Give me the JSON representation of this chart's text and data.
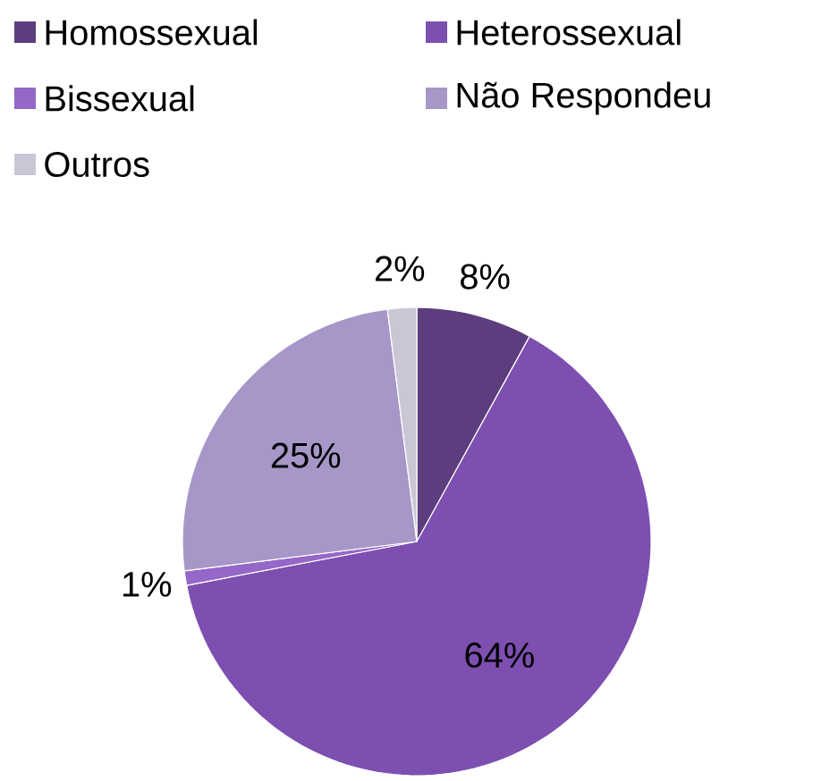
{
  "chart_data": {
    "type": "pie",
    "categories": [
      "Homossexual",
      "Heterossexual",
      "Bissexual",
      "Não Respondeu",
      "Outros"
    ],
    "values": [
      8,
      64,
      1,
      25,
      2
    ],
    "value_labels": [
      "8%",
      "64%",
      "1%",
      "25%",
      "2%"
    ],
    "colors": [
      "#5c3d7d",
      "#7c4fb0",
      "#9467c8",
      "#a797c8",
      "#cbc6d6"
    ],
    "legend": "top"
  }
}
